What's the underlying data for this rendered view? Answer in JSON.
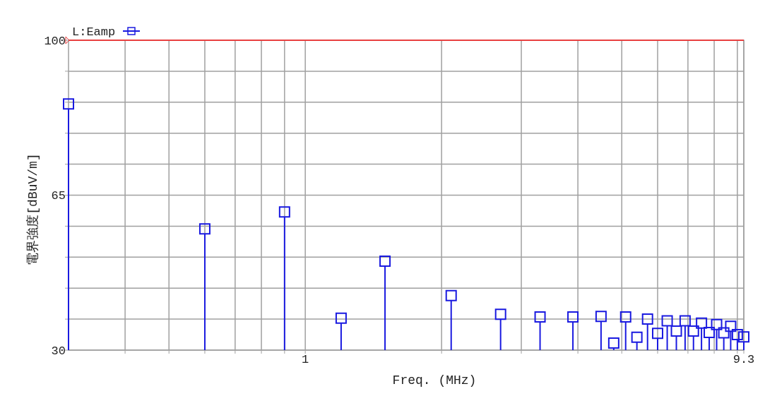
{
  "chart_data": {
    "type": "lollipop",
    "xlabel": "Freq. (MHz)",
    "ylabel": "電界強度[dBuV/m]",
    "x": [
      0.3,
      0.6,
      0.9,
      1.2,
      1.5,
      2.1,
      2.7,
      3.3,
      3.9,
      4.5,
      4.8,
      5.1,
      5.4,
      5.7,
      6.0,
      6.3,
      6.6,
      6.9,
      7.2,
      7.5,
      7.8,
      8.1,
      8.4,
      8.7,
      9.0,
      9.3
    ],
    "series": [
      {
        "name": "L:Eamp",
        "color": "#1a1ae0",
        "values": [
          85.6,
          57.4,
          61.2,
          37.2,
          50.1,
          42.3,
          38.1,
          37.5,
          37.5,
          37.6,
          31.6,
          37.5,
          32.9,
          37.0,
          33.8,
          36.6,
          34.3,
          36.6,
          34.3,
          36.1,
          34.0,
          35.8,
          33.9,
          35.4,
          33.5,
          33.0
        ]
      }
    ],
    "log": "x",
    "xlim": [
      0.3,
      9.3
    ],
    "xticks": [
      {
        "value": 0.4,
        "label": null
      },
      {
        "value": 0.5,
        "label": null
      },
      {
        "value": 0.6,
        "label": null
      },
      {
        "value": 0.7,
        "label": null
      },
      {
        "value": 0.8,
        "label": null
      },
      {
        "value": 0.9,
        "label": null
      },
      1,
      {
        "value": 2,
        "label": null
      },
      {
        "value": 3,
        "label": null
      },
      {
        "value": 4,
        "label": null
      },
      {
        "value": 5,
        "label": null
      },
      {
        "value": 6,
        "label": null
      },
      {
        "value": 7,
        "label": null
      },
      {
        "value": 8,
        "label": null
      },
      {
        "value": 9,
        "label": null
      },
      9.3
    ],
    "ylim": [
      30,
      100
    ],
    "yticks": [
      30,
      {
        "value": 37,
        "label": null
      },
      {
        "value": 44,
        "label": null
      },
      {
        "value": 51,
        "label": null
      },
      {
        "value": 58,
        "label": null
      },
      65,
      {
        "value": 72,
        "label": null
      },
      {
        "value": 79,
        "label": null
      },
      {
        "value": 86,
        "label": null
      },
      {
        "value": 93,
        "label": null
      },
      100
    ],
    "grid": true,
    "marker": "square",
    "legend": "top left",
    "ref_lines": [
      {
        "axis": "y",
        "value": 100,
        "color": "#e84040"
      }
    ]
  }
}
